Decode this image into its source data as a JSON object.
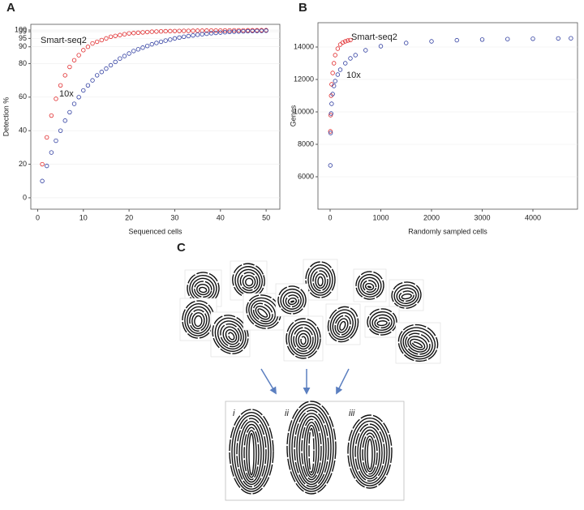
{
  "panels": {
    "a": "A",
    "b": "B",
    "c": "C"
  },
  "fingerprint_labels": [
    "i",
    "ii",
    "iii"
  ],
  "chart_data": [
    {
      "type": "scatter",
      "x_label": "Sequenced cells",
      "y_label": "Detection %",
      "xlim": [
        -1.5,
        53
      ],
      "ylim": [
        -6.8,
        103.4
      ],
      "xticks": [
        0,
        10,
        20,
        30,
        40,
        50
      ],
      "yticks": [
        0,
        20,
        40,
        60,
        80,
        90,
        95,
        99,
        100
      ],
      "series": [
        {
          "name": "Smart-seq2",
          "color": "#e0282a",
          "x": [
            1,
            2,
            3,
            4,
            5,
            6,
            7,
            8,
            9,
            10,
            11,
            12,
            13,
            14,
            15,
            16,
            17,
            18,
            19,
            20,
            21,
            22,
            23,
            24,
            25,
            26,
            27,
            28,
            29,
            30,
            31,
            32,
            33,
            34,
            35,
            36,
            37,
            38,
            39,
            40,
            41,
            42,
            43,
            44,
            45,
            46,
            47,
            48,
            49,
            50
          ],
          "values": [
            20,
            36,
            49,
            59,
            67,
            73,
            78,
            82,
            85,
            88,
            90,
            92,
            93,
            94,
            95,
            96,
            96.5,
            97,
            97.5,
            98,
            98.2,
            98.4,
            98.6,
            98.8,
            99,
            99.1,
            99.2,
            99.3,
            99.35,
            99.4,
            99.45,
            99.5,
            99.5,
            99.55,
            99.6,
            99.6,
            99.65,
            99.7,
            99.7,
            99.7,
            99.75,
            99.75,
            99.8,
            99.8,
            99.8,
            99.85,
            99.85,
            99.85,
            99.9,
            99.9
          ]
        },
        {
          "name": "10x",
          "color": "#2f3da0",
          "x": [
            1,
            2,
            3,
            4,
            5,
            6,
            7,
            8,
            9,
            10,
            11,
            12,
            13,
            14,
            15,
            16,
            17,
            18,
            19,
            20,
            21,
            22,
            23,
            24,
            25,
            26,
            27,
            28,
            29,
            30,
            31,
            32,
            33,
            34,
            35,
            36,
            37,
            38,
            39,
            40,
            41,
            42,
            43,
            44,
            45,
            46,
            47,
            48,
            49,
            50
          ],
          "values": [
            10,
            19,
            27,
            34,
            40,
            46,
            51,
            56,
            60,
            64,
            67,
            70,
            73,
            75,
            77,
            79,
            81,
            83,
            84.5,
            86,
            87.5,
            88.5,
            89.5,
            90.5,
            91.5,
            92.3,
            93,
            93.7,
            94.3,
            95,
            95.5,
            96,
            96.4,
            96.8,
            97.2,
            97.5,
            97.8,
            98.1,
            98.3,
            98.5,
            98.7,
            98.9,
            99,
            99.1,
            99.2,
            99.3,
            99.4,
            99.45,
            99.5,
            99.6
          ]
        }
      ]
    },
    {
      "type": "scatter",
      "x_label": "Randomly sampled cells",
      "y_label": "Genes",
      "xlim": [
        -240,
        4880
      ],
      "ylim": [
        4000,
        15500
      ],
      "xticks": [
        0,
        1000,
        2000,
        3000,
        4000
      ],
      "yticks": [
        6000,
        8000,
        10000,
        12000,
        14000
      ],
      "series": [
        {
          "name": "Smart-seq2",
          "color": "#e0282a",
          "x": [
            5,
            10,
            20,
            30,
            50,
            75,
            100,
            150,
            200,
            250,
            300,
            350,
            400
          ],
          "values": [
            8800,
            9800,
            11000,
            11700,
            12400,
            13000,
            13500,
            13900,
            14150,
            14280,
            14350,
            14400,
            14430
          ]
        },
        {
          "name": "10x",
          "color": "#2f3da0",
          "x": [
            5,
            10,
            20,
            30,
            50,
            75,
            100,
            150,
            200,
            300,
            400,
            500,
            700,
            1000,
            1500,
            2000,
            2500,
            3000,
            3500,
            4000,
            4500,
            4750
          ],
          "values": [
            6700,
            8700,
            9900,
            10500,
            11100,
            11600,
            11900,
            12300,
            12600,
            13000,
            13300,
            13500,
            13800,
            14050,
            14250,
            14350,
            14420,
            14460,
            14490,
            14510,
            14530,
            14540
          ]
        }
      ]
    }
  ]
}
